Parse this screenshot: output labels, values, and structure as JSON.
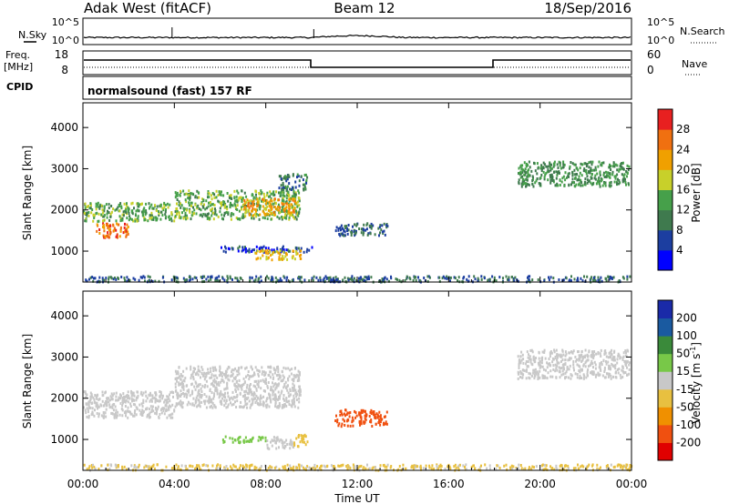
{
  "header": {
    "station_title": "Adak West (fitACF)",
    "beam": "Beam 12",
    "date": "18/Sep/2016"
  },
  "top_panels": {
    "nsky_label": "N.Sky",
    "nsearch_label": "N.Search",
    "nsky_ticks": [
      "10^5",
      "10^0"
    ],
    "nsearch_ticks": [
      "10^5",
      "10^0"
    ],
    "freq_label_line1": "Freq.",
    "freq_label_line2": "[MHz]",
    "freq_ticks": [
      "18",
      "8"
    ],
    "nave_label": "Nave",
    "nave_ticks": [
      "60",
      "0"
    ],
    "cpid_label": "CPID",
    "cpid_text": "normalsound (fast) 157 RF"
  },
  "x_axis": {
    "label": "Time UT",
    "ticks": [
      "00:00",
      "04:00",
      "08:00",
      "12:00",
      "16:00",
      "20:00",
      "00:00"
    ]
  },
  "power_colorbar": {
    "label": "Power [dB]",
    "ticks": [
      "28",
      "24",
      "20",
      "16",
      "12",
      "8",
      "4"
    ],
    "colors": [
      "#0000ff",
      "#1c3ea0",
      "#3f7a4e",
      "#46a04a",
      "#c8d02a",
      "#f0a000",
      "#f07010",
      "#e82020"
    ]
  },
  "velocity_colorbar": {
    "label_main": "Velocity [m s",
    "label_sup": "-1",
    "label_end": "]",
    "ticks": [
      "200",
      "100",
      "50",
      "15",
      "-15",
      "-50",
      "-100",
      "-200"
    ],
    "colors": [
      "#e00000",
      "#f05010",
      "#f09000",
      "#e8c040",
      "#c8c8c8",
      "#78c848",
      "#3a8a3a",
      "#1a5aa0",
      "#1a2aa8"
    ]
  },
  "chart_data": [
    {
      "type": "heatmap",
      "panel": "power",
      "ylabel": "Slant Range [km]",
      "yticks": [
        "1000",
        "2000",
        "3000",
        "4000"
      ],
      "ylim": [
        250,
        4600
      ],
      "xlim_hours": [
        0,
        24
      ],
      "regions": [
        {
          "t0": 0.0,
          "t1": 4.0,
          "r_top": 2200,
          "r_bottom": 1750,
          "power": 14
        },
        {
          "t0": 0.5,
          "t1": 2.0,
          "r_top": 1700,
          "r_bottom": 1350,
          "power": 26
        },
        {
          "t0": 4.0,
          "t1": 9.5,
          "r_top": 2500,
          "r_bottom": 1800,
          "power": 14
        },
        {
          "t0": 7.0,
          "t1": 9.3,
          "r_top": 2300,
          "r_bottom": 1900,
          "power": 22
        },
        {
          "t0": 8.5,
          "t1": 9.8,
          "r_top": 2900,
          "r_bottom": 2500,
          "power": 10
        },
        {
          "t0": 6.0,
          "t1": 10.0,
          "r_top": 1150,
          "r_bottom": 1000,
          "power": 6
        },
        {
          "t0": 7.5,
          "t1": 9.5,
          "r_top": 1050,
          "r_bottom": 820,
          "power": 20
        },
        {
          "t0": 11.0,
          "t1": 13.3,
          "r_top": 1700,
          "r_bottom": 1400,
          "power": 8
        },
        {
          "t0": 19.0,
          "t1": 23.9,
          "r_top": 3200,
          "r_bottom": 2600,
          "power": 12
        },
        {
          "t0": 0.0,
          "t1": 24.0,
          "r_top": 420,
          "r_bottom": 280,
          "power": 8
        }
      ]
    },
    {
      "type": "heatmap",
      "panel": "velocity",
      "ylabel": "Slant Range [km]",
      "yticks": [
        "1000",
        "2000",
        "3000",
        "4000"
      ],
      "ylim": [
        250,
        4600
      ],
      "xlim_hours": [
        0,
        24
      ],
      "regions": [
        {
          "t0": 0.0,
          "t1": 4.0,
          "r_top": 2200,
          "r_bottom": 1550,
          "velocity": 0
        },
        {
          "t0": 4.0,
          "t1": 9.5,
          "r_top": 2800,
          "r_bottom": 1800,
          "velocity": 0
        },
        {
          "t0": 6.0,
          "t1": 8.0,
          "r_top": 1100,
          "r_bottom": 950,
          "velocity": 30
        },
        {
          "t0": 8.0,
          "t1": 9.2,
          "r_top": 1100,
          "r_bottom": 800,
          "velocity": 0
        },
        {
          "t0": 9.2,
          "t1": 9.8,
          "r_top": 1150,
          "r_bottom": 850,
          "velocity": -40
        },
        {
          "t0": 11.0,
          "t1": 13.3,
          "r_top": 1750,
          "r_bottom": 1350,
          "velocity": -120
        },
        {
          "t0": 19.0,
          "t1": 23.9,
          "r_top": 3200,
          "r_bottom": 2500,
          "velocity": 0
        },
        {
          "t0": 0.0,
          "t1": 24.0,
          "r_top": 420,
          "r_bottom": 280,
          "velocity": -20
        }
      ]
    }
  ]
}
